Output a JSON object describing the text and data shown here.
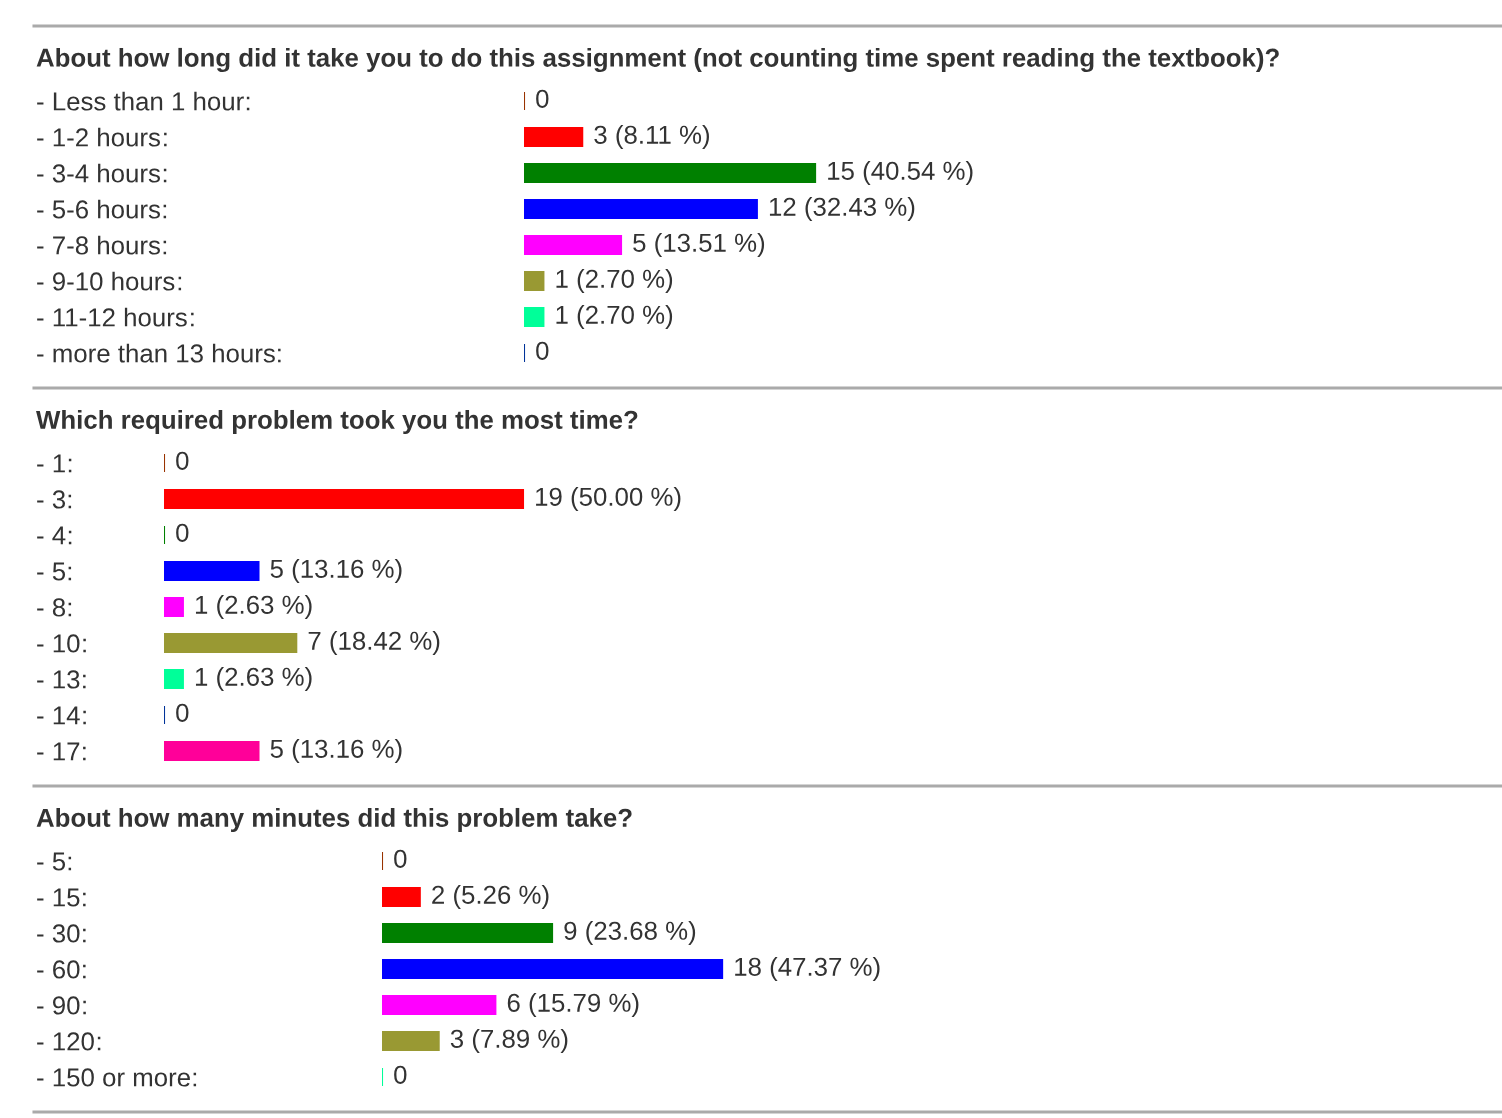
{
  "chart_data": [
    {
      "type": "bar",
      "orientation": "horizontal",
      "title": "About how long did it take you to do this assignment (not counting time spent reading the textbook)?",
      "categories": [
        "- Less than 1 hour",
        "- 1-2 hours",
        "- 3-4 hours",
        "- 5-6 hours",
        "- 7-8 hours",
        "- 9-10 hours",
        "- 11-12 hours",
        "- more than 13 hours"
      ],
      "annotations": [
        ":",
        ":",
        ":",
        ":",
        ":",
        ":",
        ":",
        ":"
      ],
      "values": [
        0,
        3,
        15,
        12,
        5,
        1,
        1,
        0
      ],
      "colors": [
        "#993300",
        "#ff0000",
        "#008000",
        "#0000ff",
        "#ff00ff",
        "#999933",
        "#00ff99",
        "#003399"
      ],
      "value_labels": [
        "0",
        "3 (8.11 %)",
        "15 (40.54 %)",
        "12 (32.43 %)",
        "5 (13.51 %)",
        "1 (2.70 %)",
        "1 (2.70 %)",
        "0"
      ],
      "tick_labels": "y"
    },
    {
      "type": "bar",
      "orientation": "horizontal",
      "title": "Which required problem took you the most time?",
      "categories": [
        "- 1",
        "- 3",
        "- 4",
        "- 5",
        "- 8",
        "- 10",
        "- 13",
        "- 14",
        "- 17"
      ],
      "annotations": [
        ":",
        ":",
        ":",
        ":",
        ":",
        ":",
        ":",
        ":",
        ":"
      ],
      "values": [
        0,
        19,
        0,
        5,
        1,
        7,
        1,
        0,
        5
      ],
      "colors": [
        "#993300",
        "#ff0000",
        "#008000",
        "#0000ff",
        "#ff00ff",
        "#999933",
        "#00ff99",
        "#003399",
        "#ff0099"
      ],
      "value_labels": [
        "0",
        "19 (50.00 %)",
        "0",
        "5 (13.16 %)",
        "1 (2.63 %)",
        "7 (18.42 %)",
        "1 (2.63 %)",
        "0",
        "5 (13.16 %)"
      ],
      "tick_labels": "y"
    },
    {
      "type": "bar",
      "orientation": "horizontal",
      "title": "About how many minutes did this problem take?",
      "categories": [
        "- 5",
        "- 15",
        "- 30",
        "- 60",
        "- 90",
        "- 120",
        "- 150 or more"
      ],
      "annotations": [
        ":",
        ":",
        ":",
        ":",
        ":",
        ":",
        ":"
      ],
      "values": [
        0,
        2,
        9,
        18,
        6,
        3,
        0
      ],
      "colors": [
        "#993300",
        "#ff0000",
        "#008000",
        "#0000ff",
        "#ff00ff",
        "#999933",
        "#00ff99"
      ],
      "value_labels": [
        "0",
        "2 (5.26 %)",
        "9 (23.68 %)",
        "18 (47.37 %)",
        "6 (15.79 %)",
        "3 (7.89 %)",
        "0"
      ],
      "tick_labels": "y"
    }
  ]
}
